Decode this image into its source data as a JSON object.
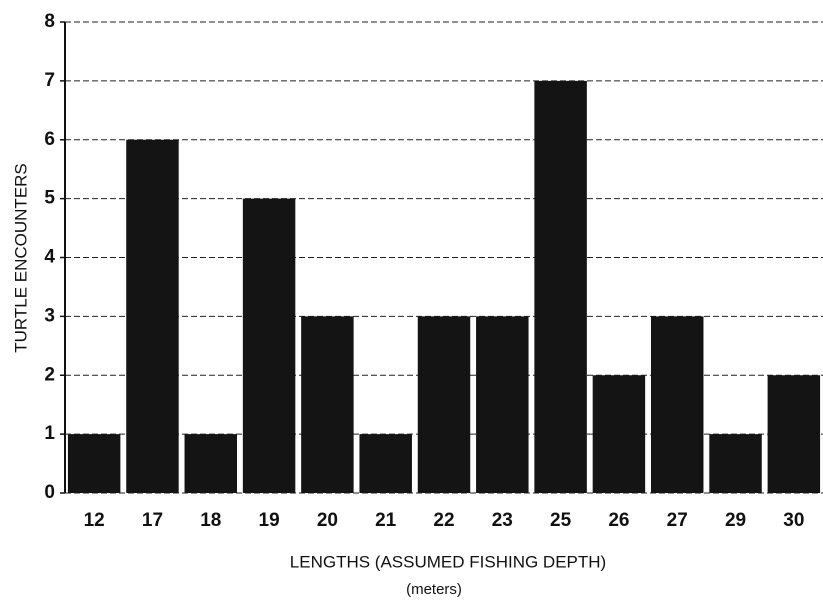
{
  "chart_data": {
    "type": "bar",
    "y_label": "TURTLE ENCOUNTERS",
    "x_label": "LENGTHS (ASSUMED FISHING DEPTH)",
    "x_label_unit": "(meters)",
    "categories": [
      "12",
      "17",
      "18",
      "19",
      "20",
      "21",
      "22",
      "23",
      "25",
      "26",
      "27",
      "29",
      "30"
    ],
    "values": [
      1,
      6,
      1,
      5,
      3,
      1,
      3,
      3,
      7,
      2,
      3,
      1,
      2
    ],
    "color": "#141414",
    "ylim": [
      0,
      8
    ],
    "yticks": [
      0,
      1,
      2,
      3,
      4,
      5,
      6,
      7,
      8
    ],
    "grid": true
  }
}
